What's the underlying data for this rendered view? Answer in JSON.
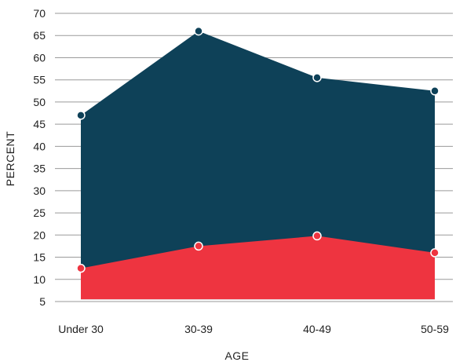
{
  "chart_data": {
    "type": "area",
    "categories": [
      "Under 30",
      "30-39",
      "40-49",
      "50-59"
    ],
    "series": [
      {
        "values": [
          47,
          66,
          55.5,
          52.5
        ],
        "color": "#0e4158"
      },
      {
        "values": [
          12.5,
          17.5,
          19.8,
          16
        ],
        "color": "#ee3440"
      }
    ],
    "xlabel": "AGE",
    "ylabel": "PERCENT",
    "ylim": [
      5,
      70
    ],
    "yticks": [
      5,
      10,
      15,
      20,
      25,
      30,
      35,
      40,
      45,
      50,
      55,
      60,
      65,
      70
    ],
    "grid": true,
    "baseline": 5.5
  }
}
